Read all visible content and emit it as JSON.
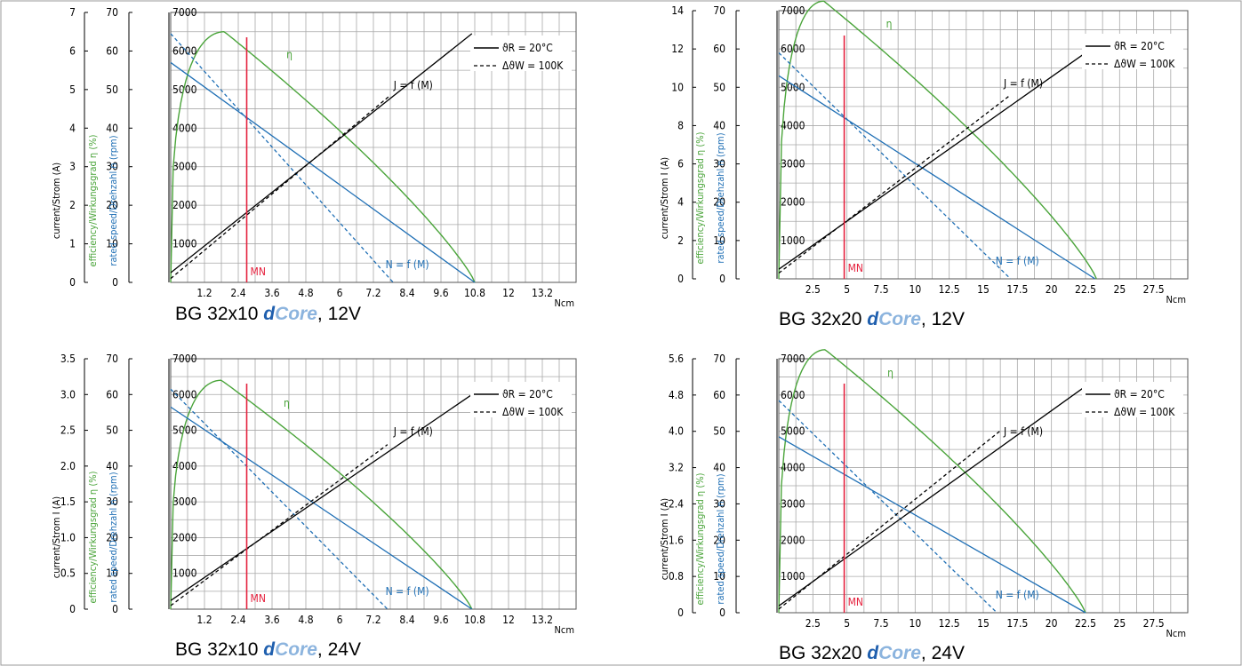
{
  "colors": {
    "grid": "#a9a9a9",
    "axis": "#000000",
    "efficiency": "#4aa43a",
    "speed": "#1f6fb5",
    "current": "#000000",
    "rated": "#e5223e",
    "frame": "#999999"
  },
  "chart_data": [
    {
      "type": "line",
      "title_prefix": "BG 32x10 ",
      "title_brand_d": "d",
      "title_brand_core": "Core",
      "title_suffix": ", 12V",
      "xlabel": "Ncm",
      "ylabel_current": "current/Strom (A)",
      "ylabel_efficiency": "efficiency/Wirkungsgrad η (%)",
      "ylabel_speed": "rated speed/Drehzahl n (rpm)",
      "x_ticks": [
        "1.2",
        "2.4",
        "3.6",
        "4.8",
        "6",
        "7.2",
        "8.4",
        "9.6",
        "10.8",
        "12",
        "13.2"
      ],
      "xlim": [
        0,
        14.4
      ],
      "current_ticks": [
        "0",
        "1",
        "2",
        "3",
        "4",
        "5",
        "6",
        "7"
      ],
      "current_max": 7,
      "efficiency_ticks": [
        "0",
        "10",
        "20",
        "30",
        "40",
        "50",
        "60",
        "70"
      ],
      "speed_ticks": [
        "1000",
        "2000",
        "3000",
        "4000",
        "5000",
        "6000",
        "7000"
      ],
      "ylim_speed": [
        0,
        7000
      ],
      "legend_line_1": "ϑR = 20°C",
      "legend_line_2": "ΔϑW = 100K",
      "label_current_curve": "J = f (M)",
      "label_speed_curve": "N = f (M)",
      "label_efficiency_curve": "η",
      "label_rated": "MN",
      "rated_torque": 2.7,
      "efficiency_peak": {
        "x": 1.9,
        "y": 65
      },
      "efficiency_end": 10.8,
      "series": [
        {
          "name": "N = f (M)",
          "x": [
            0,
            10.8
          ],
          "y": [
            5700,
            0
          ]
        },
        {
          "name": "N = f (M) hot",
          "x": [
            0,
            7.9
          ],
          "y": [
            6450,
            0
          ]
        },
        {
          "name": "J = f (M)",
          "x": [
            0,
            10.7
          ],
          "y": [
            0.25,
            6.45
          ]
        },
        {
          "name": "J = f (M) hot",
          "x": [
            0,
            7.8
          ],
          "y": [
            0.1,
            4.85
          ]
        }
      ]
    },
    {
      "type": "line",
      "title_prefix": "BG 32x20 ",
      "title_brand_d": "d",
      "title_brand_core": "Core",
      "title_suffix": ", 12V",
      "xlabel": "Ncm",
      "ylabel_current": "current/Strom I (A)",
      "ylabel_efficiency": "efficiency/Wirkungsgrad η (%)",
      "ylabel_speed": "rated speed/Drehzahl n (rpm)",
      "x_ticks": [
        "2.5",
        "5",
        "7.5",
        "10",
        "12.5",
        "15",
        "17.5",
        "20",
        "22.5",
        "25",
        "27.5"
      ],
      "xlim": [
        0,
        30
      ],
      "current_ticks": [
        "0",
        "2",
        "4",
        "6",
        "8",
        "10",
        "12",
        "14"
      ],
      "current_max": 14,
      "efficiency_ticks": [
        "0",
        "10",
        "20",
        "30",
        "40",
        "50",
        "60",
        "70"
      ],
      "speed_ticks": [
        "1000",
        "2000",
        "3000",
        "4000",
        "5000",
        "6000",
        "7000"
      ],
      "ylim_speed": [
        0,
        7000
      ],
      "legend_line_1": "ϑR = 20°C",
      "legend_line_2": "ΔϑW = 100K",
      "label_current_curve": "J = f (M)",
      "label_speed_curve": "N = f (M)",
      "label_efficiency_curve": "η",
      "label_rated": "MN",
      "rated_torque": 4.8,
      "efficiency_peak": {
        "x": 3.3,
        "y": 72.5
      },
      "efficiency_end": 23.3,
      "series": [
        {
          "name": "N = f (M)",
          "x": [
            0,
            23.2
          ],
          "y": [
            5300,
            0
          ]
        },
        {
          "name": "N = f (M) hot",
          "x": [
            0,
            17.0
          ],
          "y": [
            5900,
            0
          ]
        },
        {
          "name": "J = f (M)",
          "x": [
            0,
            23.3
          ],
          "y": [
            0.5,
            12.2
          ]
        },
        {
          "name": "J = f (M) hot",
          "x": [
            0,
            17.0
          ],
          "y": [
            0.3,
            9.6
          ]
        }
      ]
    },
    {
      "type": "line",
      "title_prefix": "BG 32x10 ",
      "title_brand_d": "d",
      "title_brand_core": "Core",
      "title_suffix": ", 24V",
      "xlabel": "Ncm",
      "ylabel_current": "current/Strom I (A)",
      "ylabel_efficiency": "efficiency/Wirkungsgrad η (%)",
      "ylabel_speed": "rated speed/Drehzahl n (rpm)",
      "x_ticks": [
        "1.2",
        "2.4",
        "3.6",
        "4.8",
        "6",
        "7.2",
        "8.4",
        "9.6",
        "10.8",
        "12",
        "13.2"
      ],
      "xlim": [
        0,
        14.4
      ],
      "current_ticks": [
        "0",
        "0.5",
        "1.0",
        "1.5",
        "2.0",
        "2.5",
        "3.0",
        "3.5"
      ],
      "current_max": 3.5,
      "efficiency_ticks": [
        "0",
        "10",
        "20",
        "30",
        "40",
        "50",
        "60",
        "70"
      ],
      "speed_ticks": [
        "1000",
        "2000",
        "3000",
        "4000",
        "5000",
        "6000",
        "7000"
      ],
      "ylim_speed": [
        0,
        7000
      ],
      "legend_line_1": "ϑR = 20°C",
      "legend_line_2": "ΔϑW = 100K",
      "label_current_curve": "J = f (M)",
      "label_speed_curve": "N = f (M)",
      "label_efficiency_curve": "η",
      "label_rated": "MN",
      "rated_torque": 2.7,
      "efficiency_peak": {
        "x": 1.8,
        "y": 64
      },
      "efficiency_end": 10.7,
      "series": [
        {
          "name": "N = f (M)",
          "x": [
            0,
            10.7
          ],
          "y": [
            5650,
            0
          ]
        },
        {
          "name": "N = f (M) hot",
          "x": [
            0,
            7.7
          ],
          "y": [
            6150,
            0
          ]
        },
        {
          "name": "J = f (M)",
          "x": [
            0,
            10.7
          ],
          "y": [
            0.12,
            3.0
          ]
        },
        {
          "name": "J = f (M) hot",
          "x": [
            0,
            7.7
          ],
          "y": [
            0.05,
            2.3
          ]
        }
      ]
    },
    {
      "type": "line",
      "title_prefix": "BG 32x20 ",
      "title_brand_d": "d",
      "title_brand_core": "Core",
      "title_suffix": ", 24V",
      "xlabel": "Ncm",
      "ylabel_current": "current/Strom I (A)",
      "ylabel_efficiency": "efficiency/Wirkungsgrad η (%)",
      "ylabel_speed": "rated speed/Drehzahl n (rpm)",
      "x_ticks": [
        "2.5",
        "5",
        "7.5",
        "10",
        "12.5",
        "15",
        "17.5",
        "20",
        "22.5",
        "25",
        "27.5"
      ],
      "xlim": [
        0,
        30
      ],
      "current_ticks": [
        "0",
        "0.8",
        "1.6",
        "2.4",
        "3.2",
        "4.0",
        "4.8",
        "5.6"
      ],
      "current_max": 5.6,
      "efficiency_ticks": [
        "0",
        "10",
        "20",
        "30",
        "40",
        "50",
        "60",
        "70"
      ],
      "speed_ticks": [
        "1000",
        "2000",
        "3000",
        "4000",
        "5000",
        "6000",
        "7000"
      ],
      "ylim_speed": [
        0,
        7000
      ],
      "legend_line_1": "ϑR = 20°C",
      "legend_line_2": "ΔϑW = 100K",
      "label_current_curve": "J = f (M)",
      "label_speed_curve": "N = f (M)",
      "label_efficiency_curve": "η",
      "label_rated": "MN",
      "rated_torque": 4.8,
      "efficiency_peak": {
        "x": 3.4,
        "y": 72.5
      },
      "efficiency_end": 22.5,
      "series": [
        {
          "name": "N = f (M)",
          "x": [
            0,
            22.5
          ],
          "y": [
            4850,
            0
          ]
        },
        {
          "name": "N = f (M) hot",
          "x": [
            0,
            16.0
          ],
          "y": [
            5850,
            0
          ]
        },
        {
          "name": "J = f (M)",
          "x": [
            0,
            22.3
          ],
          "y": [
            0.15,
            4.95
          ]
        },
        {
          "name": "J = f (M) hot",
          "x": [
            0,
            16.2
          ],
          "y": [
            0.08,
            4.0
          ]
        }
      ]
    }
  ]
}
